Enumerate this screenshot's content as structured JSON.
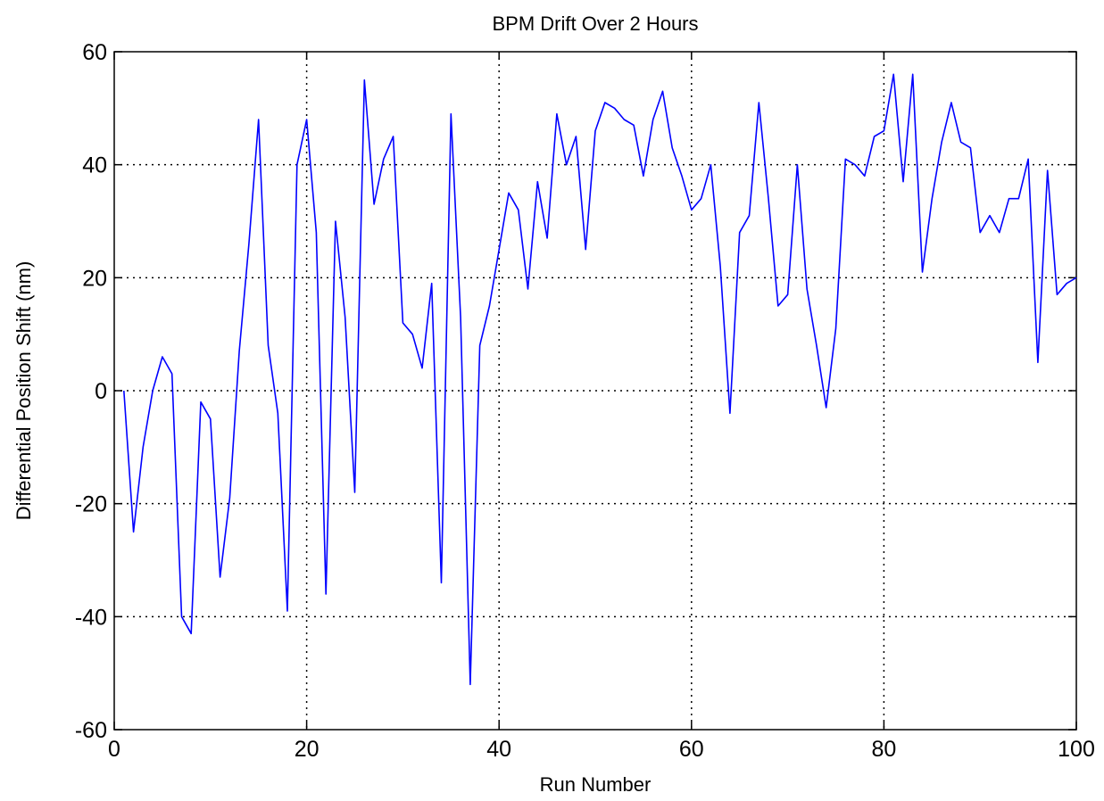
{
  "chart_data": {
    "type": "line",
    "title": "BPM Drift Over 2 Hours",
    "xlabel": "Run Number",
    "ylabel": "Differential Position Shift (nm)",
    "xlim": [
      0,
      100
    ],
    "ylim": [
      -60,
      60
    ],
    "xticks": [
      0,
      20,
      40,
      60,
      80,
      100
    ],
    "yticks": [
      -60,
      -40,
      -20,
      0,
      20,
      40,
      60
    ],
    "grid": true,
    "series": [
      {
        "color": "#0000ff",
        "x": [
          1,
          2,
          3,
          4,
          5,
          6,
          7,
          8,
          9,
          10,
          11,
          12,
          13,
          14,
          15,
          16,
          17,
          18,
          19,
          20,
          21,
          22,
          23,
          24,
          25,
          26,
          27,
          28,
          29,
          30,
          31,
          32,
          33,
          34,
          35,
          36,
          37,
          38,
          39,
          40,
          41,
          42,
          43,
          44,
          45,
          46,
          47,
          48,
          49,
          50,
          51,
          52,
          53,
          54,
          55,
          56,
          57,
          58,
          59,
          60,
          61,
          62,
          63,
          64,
          65,
          66,
          67,
          68,
          69,
          70,
          71,
          72,
          73,
          74,
          75,
          76,
          77,
          78,
          79,
          80,
          81,
          82,
          83,
          84,
          85,
          86,
          87,
          88,
          89,
          90,
          91,
          92,
          93,
          94,
          95,
          96,
          97,
          98,
          99,
          100
        ],
        "y": [
          0,
          -25,
          -10,
          0,
          6,
          3,
          -40,
          -43,
          -2,
          -5,
          -33,
          -19,
          7,
          26,
          48,
          8,
          -4,
          -39,
          40,
          48,
          28,
          -36,
          30,
          13,
          -18,
          55,
          33,
          41,
          45,
          12,
          10,
          4,
          19,
          -34,
          49,
          13,
          -52,
          8,
          15,
          25,
          35,
          32,
          18,
          37,
          27,
          49,
          40,
          45,
          25,
          46,
          51,
          50,
          48,
          47,
          38,
          48,
          53,
          43,
          38,
          32,
          34,
          40,
          22,
          -4,
          28,
          31,
          51,
          34,
          15,
          17,
          40,
          18,
          8,
          -3,
          11,
          41,
          40,
          38,
          45,
          46,
          56,
          37,
          56,
          21,
          34,
          44,
          51,
          44,
          43,
          28,
          31,
          28,
          34,
          34,
          41,
          5,
          39,
          17,
          19,
          20
        ]
      }
    ]
  }
}
